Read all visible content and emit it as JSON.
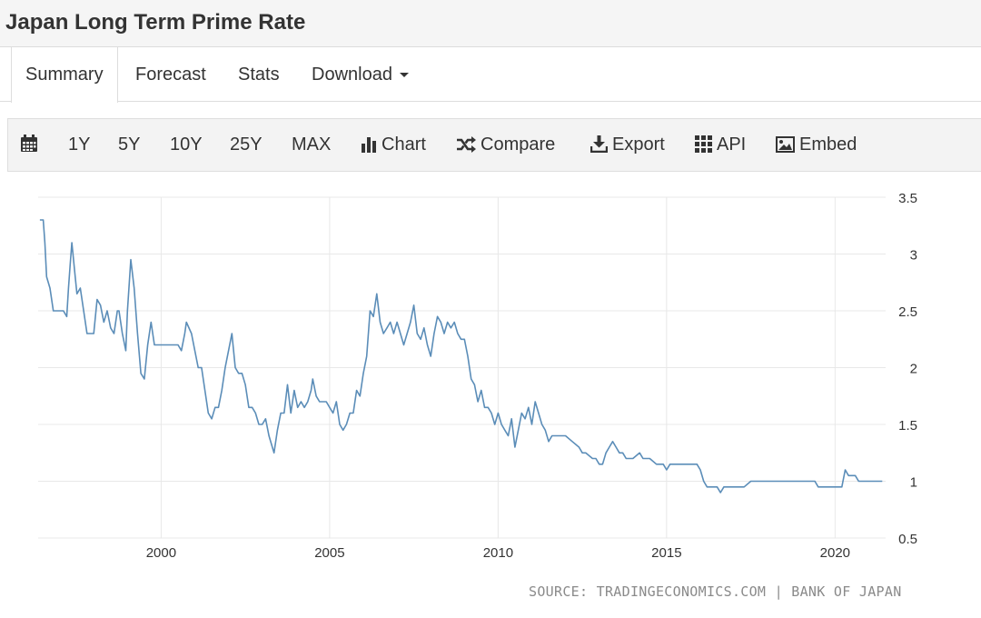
{
  "header": {
    "title": "Japan Long Term Prime Rate"
  },
  "tabs": [
    {
      "label": "Summary"
    },
    {
      "label": "Forecast"
    },
    {
      "label": "Stats"
    },
    {
      "label": "Download"
    }
  ],
  "toolbar": {
    "ranges": [
      "1Y",
      "5Y",
      "10Y",
      "25Y",
      "MAX"
    ],
    "chart_label": "Chart",
    "compare_label": "Compare",
    "export_label": "Export",
    "api_label": "API",
    "embed_label": "Embed"
  },
  "colors": {
    "line": "#5b8db8",
    "grid": "#e8e8e8"
  },
  "icons": [
    "calendar-icon",
    "bar-chart-icon",
    "shuffle-icon",
    "download-icon",
    "grid-icon",
    "image-icon"
  ],
  "source_text": "SOURCE: TRADINGECONOMICS.COM | BANK OF JAPAN",
  "chart_data": {
    "type": "line",
    "title": "",
    "xlabel": "",
    "ylabel": "",
    "xlim": [
      1996.35,
      2021.5
    ],
    "ylim": [
      0.5,
      3.5
    ],
    "x_ticks": [
      2000,
      2005,
      2010,
      2015,
      2020
    ],
    "y_ticks": [
      0.5,
      1,
      1.5,
      2,
      2.5,
      3,
      3.5
    ],
    "y_axis_position": "right",
    "grid": true,
    "series": [
      {
        "points": [
          [
            1996.4,
            3.3
          ],
          [
            1996.5,
            3.3
          ],
          [
            1996.55,
            3.1
          ],
          [
            1996.6,
            2.8
          ],
          [
            1996.7,
            2.7
          ],
          [
            1996.8,
            2.5
          ],
          [
            1997.0,
            2.5
          ],
          [
            1997.1,
            2.5
          ],
          [
            1997.2,
            2.45
          ],
          [
            1997.25,
            2.7
          ],
          [
            1997.3,
            2.9
          ],
          [
            1997.35,
            3.1
          ],
          [
            1997.45,
            2.8
          ],
          [
            1997.5,
            2.65
          ],
          [
            1997.6,
            2.7
          ],
          [
            1997.7,
            2.5
          ],
          [
            1997.8,
            2.3
          ],
          [
            1997.9,
            2.3
          ],
          [
            1998.0,
            2.3
          ],
          [
            1998.1,
            2.6
          ],
          [
            1998.2,
            2.55
          ],
          [
            1998.3,
            2.4
          ],
          [
            1998.4,
            2.5
          ],
          [
            1998.5,
            2.35
          ],
          [
            1998.6,
            2.3
          ],
          [
            1998.7,
            2.5
          ],
          [
            1998.75,
            2.5
          ],
          [
            1998.85,
            2.3
          ],
          [
            1998.95,
            2.15
          ],
          [
            1999.0,
            2.5
          ],
          [
            1999.1,
            2.95
          ],
          [
            1999.2,
            2.7
          ],
          [
            1999.3,
            2.3
          ],
          [
            1999.4,
            1.95
          ],
          [
            1999.5,
            1.9
          ],
          [
            1999.6,
            2.2
          ],
          [
            1999.7,
            2.4
          ],
          [
            1999.8,
            2.2
          ],
          [
            1999.9,
            2.2
          ],
          [
            2000.0,
            2.2
          ],
          [
            2000.2,
            2.2
          ],
          [
            2000.4,
            2.2
          ],
          [
            2000.5,
            2.2
          ],
          [
            2000.6,
            2.15
          ],
          [
            2000.7,
            2.3
          ],
          [
            2000.75,
            2.4
          ],
          [
            2000.9,
            2.3
          ],
          [
            2001.0,
            2.15
          ],
          [
            2001.1,
            2.0
          ],
          [
            2001.2,
            2.0
          ],
          [
            2001.3,
            1.8
          ],
          [
            2001.4,
            1.6
          ],
          [
            2001.5,
            1.55
          ],
          [
            2001.6,
            1.65
          ],
          [
            2001.7,
            1.65
          ],
          [
            2001.8,
            1.8
          ],
          [
            2001.9,
            2.0
          ],
          [
            2002.0,
            2.15
          ],
          [
            2002.1,
            2.3
          ],
          [
            2002.2,
            2.0
          ],
          [
            2002.3,
            1.95
          ],
          [
            2002.4,
            1.95
          ],
          [
            2002.5,
            1.85
          ],
          [
            2002.6,
            1.65
          ],
          [
            2002.7,
            1.65
          ],
          [
            2002.8,
            1.6
          ],
          [
            2002.9,
            1.5
          ],
          [
            2003.0,
            1.5
          ],
          [
            2003.1,
            1.55
          ],
          [
            2003.2,
            1.4
          ],
          [
            2003.3,
            1.3
          ],
          [
            2003.35,
            1.25
          ],
          [
            2003.45,
            1.45
          ],
          [
            2003.55,
            1.6
          ],
          [
            2003.65,
            1.6
          ],
          [
            2003.75,
            1.85
          ],
          [
            2003.85,
            1.6
          ],
          [
            2003.95,
            1.8
          ],
          [
            2004.05,
            1.65
          ],
          [
            2004.15,
            1.7
          ],
          [
            2004.25,
            1.65
          ],
          [
            2004.35,
            1.7
          ],
          [
            2004.45,
            1.8
          ],
          [
            2004.5,
            1.9
          ],
          [
            2004.6,
            1.75
          ],
          [
            2004.7,
            1.7
          ],
          [
            2004.8,
            1.7
          ],
          [
            2004.9,
            1.7
          ],
          [
            2005.0,
            1.65
          ],
          [
            2005.1,
            1.6
          ],
          [
            2005.2,
            1.7
          ],
          [
            2005.3,
            1.5
          ],
          [
            2005.4,
            1.45
          ],
          [
            2005.5,
            1.5
          ],
          [
            2005.6,
            1.6
          ],
          [
            2005.7,
            1.6
          ],
          [
            2005.8,
            1.8
          ],
          [
            2005.9,
            1.75
          ],
          [
            2006.0,
            1.95
          ],
          [
            2006.1,
            2.1
          ],
          [
            2006.2,
            2.5
          ],
          [
            2006.3,
            2.45
          ],
          [
            2006.4,
            2.65
          ],
          [
            2006.5,
            2.4
          ],
          [
            2006.6,
            2.3
          ],
          [
            2006.7,
            2.35
          ],
          [
            2006.8,
            2.4
          ],
          [
            2006.9,
            2.3
          ],
          [
            2007.0,
            2.4
          ],
          [
            2007.1,
            2.3
          ],
          [
            2007.2,
            2.2
          ],
          [
            2007.3,
            2.3
          ],
          [
            2007.4,
            2.4
          ],
          [
            2007.5,
            2.55
          ],
          [
            2007.6,
            2.3
          ],
          [
            2007.7,
            2.25
          ],
          [
            2007.8,
            2.35
          ],
          [
            2007.9,
            2.2
          ],
          [
            2008.0,
            2.1
          ],
          [
            2008.1,
            2.3
          ],
          [
            2008.2,
            2.45
          ],
          [
            2008.3,
            2.4
          ],
          [
            2008.4,
            2.3
          ],
          [
            2008.5,
            2.4
          ],
          [
            2008.6,
            2.35
          ],
          [
            2008.7,
            2.4
          ],
          [
            2008.8,
            2.3
          ],
          [
            2008.9,
            2.25
          ],
          [
            2009.0,
            2.25
          ],
          [
            2009.1,
            2.1
          ],
          [
            2009.2,
            1.9
          ],
          [
            2009.3,
            1.85
          ],
          [
            2009.4,
            1.7
          ],
          [
            2009.5,
            1.8
          ],
          [
            2009.6,
            1.65
          ],
          [
            2009.7,
            1.65
          ],
          [
            2009.8,
            1.6
          ],
          [
            2009.9,
            1.5
          ],
          [
            2010.0,
            1.6
          ],
          [
            2010.1,
            1.5
          ],
          [
            2010.2,
            1.45
          ],
          [
            2010.3,
            1.4
          ],
          [
            2010.4,
            1.55
          ],
          [
            2010.5,
            1.3
          ],
          [
            2010.6,
            1.45
          ],
          [
            2010.7,
            1.6
          ],
          [
            2010.8,
            1.55
          ],
          [
            2010.9,
            1.65
          ],
          [
            2011.0,
            1.5
          ],
          [
            2011.1,
            1.7
          ],
          [
            2011.2,
            1.6
          ],
          [
            2011.3,
            1.5
          ],
          [
            2011.4,
            1.45
          ],
          [
            2011.5,
            1.35
          ],
          [
            2011.6,
            1.4
          ],
          [
            2011.8,
            1.4
          ],
          [
            2012.0,
            1.4
          ],
          [
            2012.2,
            1.35
          ],
          [
            2012.4,
            1.3
          ],
          [
            2012.5,
            1.25
          ],
          [
            2012.6,
            1.25
          ],
          [
            2012.8,
            1.2
          ],
          [
            2012.9,
            1.2
          ],
          [
            2013.0,
            1.15
          ],
          [
            2013.1,
            1.15
          ],
          [
            2013.2,
            1.25
          ],
          [
            2013.3,
            1.3
          ],
          [
            2013.4,
            1.35
          ],
          [
            2013.5,
            1.3
          ],
          [
            2013.6,
            1.25
          ],
          [
            2013.7,
            1.25
          ],
          [
            2013.8,
            1.2
          ],
          [
            2014.0,
            1.2
          ],
          [
            2014.2,
            1.25
          ],
          [
            2014.3,
            1.2
          ],
          [
            2014.5,
            1.2
          ],
          [
            2014.7,
            1.15
          ],
          [
            2014.9,
            1.15
          ],
          [
            2015.0,
            1.1
          ],
          [
            2015.1,
            1.15
          ],
          [
            2015.3,
            1.15
          ],
          [
            2015.5,
            1.15
          ],
          [
            2015.7,
            1.15
          ],
          [
            2015.9,
            1.15
          ],
          [
            2016.0,
            1.1
          ],
          [
            2016.1,
            1.0
          ],
          [
            2016.2,
            0.95
          ],
          [
            2016.3,
            0.95
          ],
          [
            2016.5,
            0.95
          ],
          [
            2016.6,
            0.9
          ],
          [
            2016.7,
            0.95
          ],
          [
            2017.0,
            0.95
          ],
          [
            2017.3,
            0.95
          ],
          [
            2017.5,
            1.0
          ],
          [
            2017.8,
            1.0
          ],
          [
            2018.0,
            1.0
          ],
          [
            2018.3,
            1.0
          ],
          [
            2018.6,
            1.0
          ],
          [
            2018.9,
            1.0
          ],
          [
            2019.2,
            1.0
          ],
          [
            2019.4,
            1.0
          ],
          [
            2019.5,
            0.95
          ],
          [
            2019.7,
            0.95
          ],
          [
            2019.9,
            0.95
          ],
          [
            2020.1,
            0.95
          ],
          [
            2020.2,
            0.95
          ],
          [
            2020.3,
            1.1
          ],
          [
            2020.4,
            1.05
          ],
          [
            2020.5,
            1.05
          ],
          [
            2020.6,
            1.05
          ],
          [
            2020.7,
            1.0
          ],
          [
            2020.9,
            1.0
          ],
          [
            2021.1,
            1.0
          ],
          [
            2021.3,
            1.0
          ],
          [
            2021.4,
            1.0
          ]
        ]
      }
    ]
  }
}
